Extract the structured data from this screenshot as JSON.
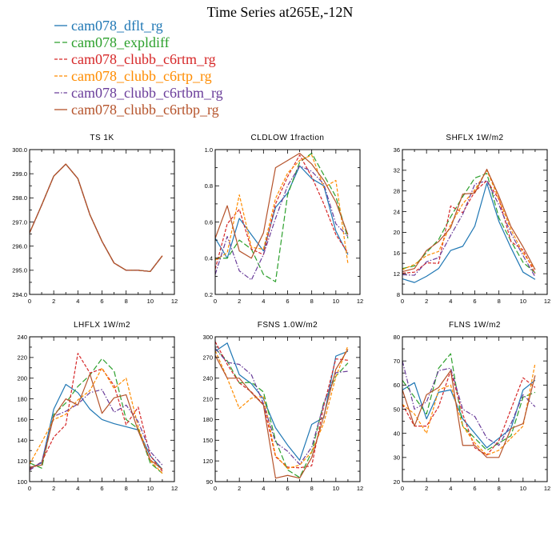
{
  "figure": {
    "title": "Time Series at265E,-12N"
  },
  "legend": [
    {
      "name": "cam078_dflt_rg",
      "color": "#1f77b4",
      "dash": "solid"
    },
    {
      "name": "cam078_expldiff",
      "color": "#2ca02c",
      "dash": "longdash"
    },
    {
      "name": "cam078_clubb_c6rtm_rg",
      "color": "#d62728",
      "dash": "dash"
    },
    {
      "name": "cam078_clubb_c6rtp_rg",
      "color": "#ff8c00",
      "dash": "dash"
    },
    {
      "name": "cam078_clubb_c6rtbm_rg",
      "color": "#6a3d9a",
      "dash": "dashdot"
    },
    {
      "name": "cam078_clubb_c6rtbp_rg",
      "color": "#b5532b",
      "dash": "solid"
    }
  ],
  "chart_data": [
    {
      "type": "line",
      "title": "TS   1K",
      "x": [
        0,
        1,
        2,
        3,
        4,
        5,
        6,
        7,
        8,
        9,
        10,
        11
      ],
      "xlim": [
        0,
        12
      ],
      "xticks": [
        0,
        2,
        4,
        6,
        8,
        10,
        12
      ],
      "ylim": [
        294.0,
        300.0
      ],
      "yticks": [
        "294.0",
        "295.0",
        "296.0",
        "297.0",
        "298.0",
        "299.0",
        "300.0"
      ],
      "series": [
        {
          "name": "cam078_dflt_rg",
          "values": [
            296.55,
            297.7,
            298.9,
            299.4,
            298.8,
            297.3,
            296.2,
            295.3,
            295.0,
            295.0,
            294.95,
            295.6
          ]
        },
        {
          "name": "cam078_expldiff",
          "values": [
            296.55,
            297.7,
            298.9,
            299.4,
            298.8,
            297.3,
            296.2,
            295.3,
            295.0,
            295.0,
            294.95,
            295.6
          ]
        },
        {
          "name": "cam078_clubb_c6rtm_rg",
          "values": [
            296.55,
            297.7,
            298.9,
            299.4,
            298.8,
            297.3,
            296.2,
            295.3,
            295.0,
            295.0,
            294.95,
            295.6
          ]
        },
        {
          "name": "cam078_clubb_c6rtp_rg",
          "values": [
            296.55,
            297.7,
            298.9,
            299.4,
            298.8,
            297.3,
            296.2,
            295.3,
            295.0,
            295.0,
            294.95,
            295.6
          ]
        },
        {
          "name": "cam078_clubb_c6rtbm_rg",
          "values": [
            296.55,
            297.7,
            298.9,
            299.4,
            298.8,
            297.3,
            296.2,
            295.3,
            295.0,
            295.0,
            294.95,
            295.6
          ]
        },
        {
          "name": "cam078_clubb_c6rtbp_rg",
          "values": [
            296.55,
            297.7,
            298.9,
            299.4,
            298.8,
            297.3,
            296.2,
            295.3,
            295.0,
            295.0,
            294.95,
            295.6
          ]
        }
      ]
    },
    {
      "type": "line",
      "title": "CLDLOW   1fraction",
      "x": [
        0,
        1,
        2,
        3,
        4,
        5,
        6,
        7,
        8,
        9,
        10,
        11
      ],
      "xlim": [
        0,
        12
      ],
      "xticks": [
        0,
        2,
        4,
        6,
        8,
        10,
        12
      ],
      "ylim": [
        0.2,
        1.0
      ],
      "yticks": [
        "0.2",
        "0.4",
        "0.6",
        "0.8",
        "1.0"
      ],
      "series": [
        {
          "name": "cam078_dflt_rg",
          "values": [
            0.51,
            0.4,
            0.62,
            0.53,
            0.44,
            0.68,
            0.76,
            0.91,
            0.84,
            0.8,
            0.55,
            0.42
          ]
        },
        {
          "name": "cam078_expldiff",
          "values": [
            0.4,
            0.4,
            0.5,
            0.45,
            0.31,
            0.27,
            0.75,
            0.93,
            0.98,
            0.86,
            0.74,
            0.51
          ]
        },
        {
          "name": "cam078_clubb_c6rtm_rg",
          "values": [
            0.34,
            0.59,
            0.67,
            0.45,
            0.42,
            0.7,
            0.85,
            0.97,
            0.85,
            0.7,
            0.53,
            0.43
          ]
        },
        {
          "name": "cam078_clubb_c6rtp_rg",
          "values": [
            0.39,
            0.43,
            0.75,
            0.46,
            0.45,
            0.73,
            0.87,
            0.94,
            0.97,
            0.79,
            0.83,
            0.37
          ]
        },
        {
          "name": "cam078_clubb_c6rtbm_rg",
          "values": [
            0.31,
            0.52,
            0.33,
            0.28,
            0.42,
            0.62,
            0.8,
            0.91,
            0.88,
            0.81,
            0.59,
            0.52
          ]
        },
        {
          "name": "cam078_clubb_c6rtbp_rg",
          "values": [
            0.51,
            0.69,
            0.44,
            0.4,
            0.54,
            0.9,
            0.94,
            0.98,
            0.92,
            0.83,
            0.71,
            0.53
          ]
        }
      ]
    },
    {
      "type": "line",
      "title": "SHFLX   1W/m2",
      "x": [
        0,
        1,
        2,
        3,
        4,
        5,
        6,
        7,
        8,
        9,
        10,
        11
      ],
      "xlim": [
        0,
        12
      ],
      "xticks": [
        0,
        2,
        4,
        6,
        8,
        10,
        12
      ],
      "ylim": [
        8,
        36
      ],
      "yticks": [
        "8",
        "12",
        "16",
        "20",
        "24",
        "28",
        "32",
        "36"
      ],
      "series": [
        {
          "name": "cam078_dflt_rg",
          "values": [
            11.0,
            10.3,
            11.5,
            13.0,
            16.5,
            17.3,
            21.2,
            29.5,
            22.1,
            17.0,
            12.3,
            10.9
          ]
        },
        {
          "name": "cam078_expldiff",
          "values": [
            13.0,
            13.5,
            16.1,
            18.6,
            23.0,
            26.9,
            30.5,
            31.4,
            22.8,
            18.3,
            14.2,
            12.2
          ]
        },
        {
          "name": "cam078_clubb_c6rtm_rg",
          "values": [
            12.1,
            12.3,
            14.1,
            14.0,
            25.1,
            23.8,
            27.9,
            30.0,
            26.4,
            18.2,
            16.6,
            12.0
          ]
        },
        {
          "name": "cam078_clubb_c6rtp_rg",
          "values": [
            12.8,
            13.8,
            15.5,
            16.3,
            21.5,
            25.5,
            28.2,
            32.0,
            26.4,
            20.5,
            16.0,
            12.8
          ]
        },
        {
          "name": "cam078_clubb_c6rtbm_rg",
          "values": [
            11.8,
            11.7,
            14.3,
            15.1,
            19.4,
            23.5,
            29.3,
            30.0,
            25.3,
            19.8,
            15.5,
            11.4
          ]
        },
        {
          "name": "cam078_clubb_c6rtbp_rg",
          "values": [
            12.4,
            13.0,
            16.5,
            18.2,
            20.9,
            27.4,
            27.6,
            32.2,
            27.0,
            21.1,
            17.2,
            12.8
          ]
        }
      ]
    },
    {
      "type": "line",
      "title": "LHFLX   1W/m2",
      "x": [
        0,
        1,
        2,
        3,
        4,
        5,
        6,
        7,
        8,
        9,
        10,
        11
      ],
      "xlim": [
        0,
        12
      ],
      "xticks": [
        0,
        2,
        4,
        6,
        8,
        10,
        12
      ],
      "ylim": [
        100,
        240
      ],
      "yticks": [
        "100",
        "120",
        "140",
        "160",
        "180",
        "200",
        "220",
        "240"
      ],
      "series": [
        {
          "name": "cam078_dflt_rg",
          "values": [
            113,
            118,
            170,
            194,
            186,
            170,
            160,
            156,
            153,
            150,
            125,
            112
          ]
        },
        {
          "name": "cam078_expldiff",
          "values": [
            118,
            113,
            165,
            176,
            192,
            203,
            219,
            207,
            160,
            151,
            118,
            108
          ]
        },
        {
          "name": "cam078_clubb_c6rtm_rg",
          "values": [
            112,
            119,
            143,
            155,
            224,
            205,
            209,
            193,
            155,
            172,
            125,
            110
          ]
        },
        {
          "name": "cam078_clubb_c6rtp_rg",
          "values": [
            117,
            138,
            160,
            165,
            179,
            188,
            210,
            190,
            200,
            153,
            120,
            108
          ]
        },
        {
          "name": "cam078_clubb_c6rtbm_rg",
          "values": [
            111,
            119,
            163,
            168,
            175,
            186,
            189,
            167,
            174,
            158,
            129,
            116
          ]
        },
        {
          "name": "cam078_clubb_c6rtbp_rg",
          "values": [
            114,
            116,
            163,
            180,
            174,
            204,
            166,
            181,
            184,
            149,
            121,
            112
          ]
        }
      ]
    },
    {
      "type": "line",
      "title": "FSNS   1.0W/m2",
      "x": [
        0,
        1,
        2,
        3,
        4,
        5,
        6,
        7,
        8,
        9,
        10,
        11
      ],
      "xlim": [
        0,
        12
      ],
      "xticks": [
        0,
        2,
        4,
        6,
        8,
        10,
        12
      ],
      "ylim": [
        90,
        300
      ],
      "yticks": [
        "90",
        "120",
        "150",
        "180",
        "210",
        "240",
        "270",
        "300"
      ],
      "series": [
        {
          "name": "cam078_dflt_rg",
          "values": [
            279,
            291,
            245,
            232,
            210,
            168,
            143,
            121,
            173,
            183,
            272,
            279
          ]
        },
        {
          "name": "cam078_expldiff",
          "values": [
            283,
            265,
            233,
            234,
            220,
            150,
            107,
            96,
            133,
            205,
            243,
            262
          ]
        },
        {
          "name": "cam078_clubb_c6rtm_rg",
          "values": [
            293,
            260,
            233,
            220,
            202,
            126,
            111,
            110,
            113,
            200,
            268,
            266
          ]
        },
        {
          "name": "cam078_clubb_c6rtp_rg",
          "values": [
            280,
            240,
            196,
            211,
            214,
            128,
            109,
            114,
            133,
            175,
            242,
            287
          ]
        },
        {
          "name": "cam078_clubb_c6rtbm_rg",
          "values": [
            283,
            263,
            260,
            245,
            203,
            147,
            134,
            115,
            140,
            203,
            248,
            250
          ]
        },
        {
          "name": "cam078_clubb_c6rtbp_rg",
          "values": [
            273,
            240,
            240,
            219,
            201,
            95,
            99,
            95,
            125,
            185,
            253,
            282
          ]
        }
      ]
    },
    {
      "type": "line",
      "title": "FLNS   1W/m2",
      "x": [
        0,
        1,
        2,
        3,
        4,
        5,
        6,
        7,
        8,
        9,
        10,
        11
      ],
      "xlim": [
        0,
        12
      ],
      "xticks": [
        0,
        2,
        4,
        6,
        8,
        10,
        12
      ],
      "ylim": [
        20,
        80
      ],
      "yticks": [
        "20",
        "30",
        "40",
        "50",
        "60",
        "70",
        "80"
      ],
      "series": [
        {
          "name": "cam078_dflt_rg",
          "values": [
            58,
            61,
            46,
            57,
            58,
            46,
            40,
            34,
            38,
            42,
            58,
            62
          ]
        },
        {
          "name": "cam078_expldiff",
          "values": [
            62,
            55,
            48,
            67,
            73,
            43,
            38,
            33,
            36,
            39,
            55,
            57
          ]
        },
        {
          "name": "cam078_clubb_c6rtm_rg",
          "values": [
            52,
            43,
            43,
            51,
            66,
            48,
            34,
            31,
            37,
            50,
            63,
            59
          ]
        },
        {
          "name": "cam078_clubb_c6rtp_rg",
          "values": [
            52,
            48,
            40,
            58,
            60,
            43,
            36,
            31,
            33,
            38,
            43,
            69
          ]
        },
        {
          "name": "cam078_clubb_c6rtbm_rg",
          "values": [
            70,
            50,
            53,
            66,
            67,
            50,
            47,
            38,
            35,
            44,
            56,
            51
          ]
        },
        {
          "name": "cam078_clubb_c6rtbp_rg",
          "values": [
            58,
            43,
            56,
            59,
            66,
            35,
            35,
            30,
            30,
            42,
            44,
            64
          ]
        }
      ]
    }
  ]
}
